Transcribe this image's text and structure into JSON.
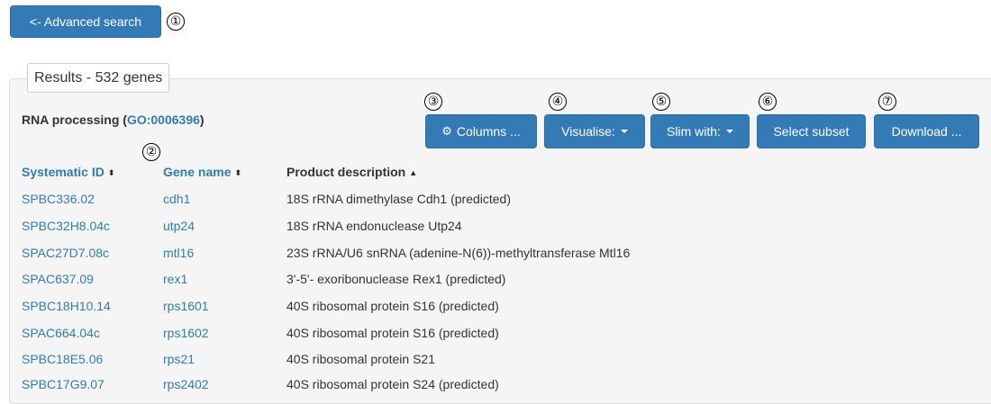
{
  "nav": {
    "back_label": "<- Advanced search"
  },
  "markers": [
    "①",
    "②",
    "③",
    "④",
    "⑤",
    "⑥",
    "⑦"
  ],
  "results": {
    "legend": "Results - 532 genes",
    "term_name": "RNA processing",
    "term_open": "(",
    "term_id": "GO:0006396",
    "term_close": ")"
  },
  "toolbar": {
    "columns_label": "Columns ...",
    "visualise_label": "Visualise:",
    "slim_label": "Slim with:",
    "subset_label": "Select subset",
    "download_label": "Download ..."
  },
  "table": {
    "headers": {
      "systematic_id": "Systematic ID",
      "gene_name": "Gene name",
      "product": "Product description"
    },
    "rows": [
      {
        "id": "SPBC336.02",
        "name": "cdh1",
        "desc": "18S rRNA dimethylase Cdh1 (predicted)"
      },
      {
        "id": "SPBC32H8.04c",
        "name": "utp24",
        "desc": "18S rRNA endonuclease Utp24"
      },
      {
        "id": "SPAC27D7.08c",
        "name": "mtl16",
        "desc": "23S rRNA/U6 snRNA (adenine-N(6))-methyltransferase Mtl16"
      },
      {
        "id": "SPAC637.09",
        "name": "rex1",
        "desc": "3'-5'- exoribonuclease Rex1 (predicted)"
      },
      {
        "id": "SPBC18H10.14",
        "name": "rps1601",
        "desc": "40S ribosomal protein S16 (predicted)"
      },
      {
        "id": "SPAC664.04c",
        "name": "rps1602",
        "desc": "40S ribosomal protein S16 (predicted)"
      },
      {
        "id": "SPBC18E5.06",
        "name": "rps21",
        "desc": "40S ribosomal protein S21"
      },
      {
        "id": "SPBC17G9.07",
        "name": "rps2402",
        "desc": "40S ribosomal protein S24 (predicted)"
      }
    ]
  },
  "icons": {
    "sort_both": "⬍",
    "sort_asc": "▲",
    "gear": "⚙"
  },
  "colors": {
    "primary": "#337ab7",
    "link": "#337ab7",
    "panel_bg": "#f5f5f5"
  }
}
